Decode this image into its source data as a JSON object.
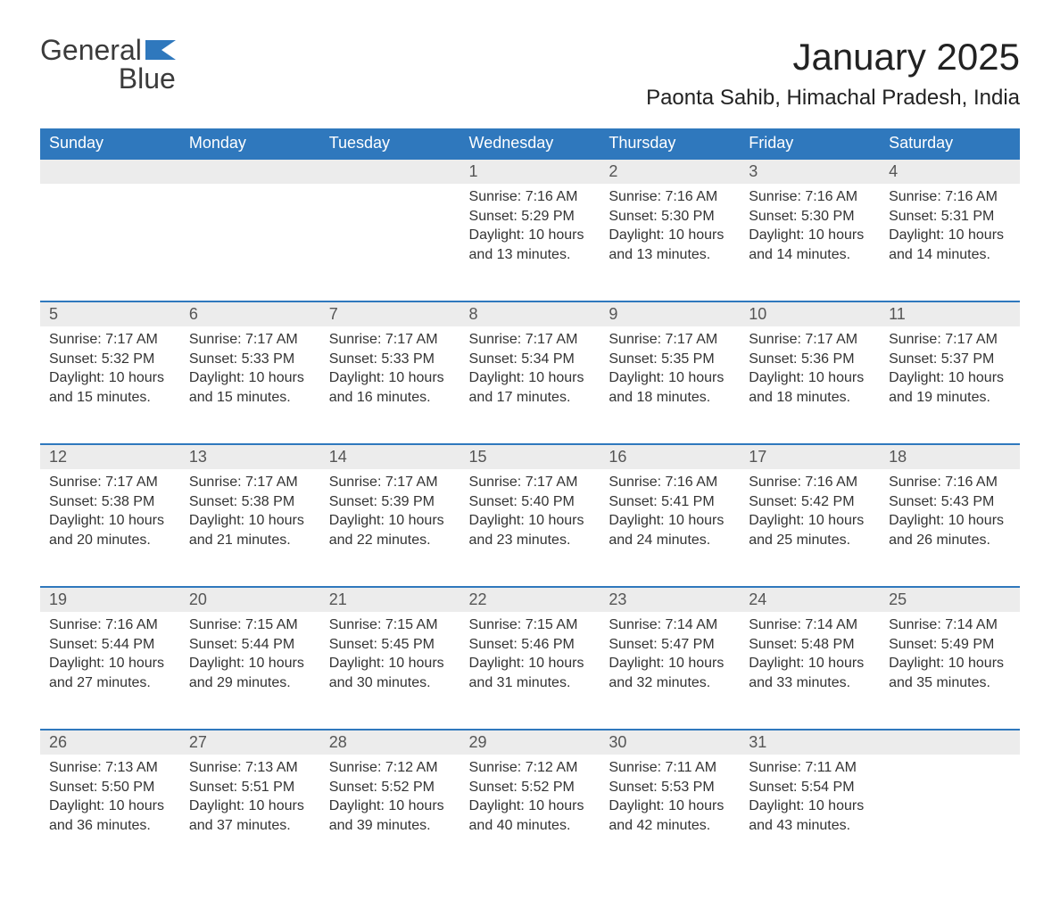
{
  "brand": {
    "part1": "General",
    "part2": "Blue",
    "logo_color": "#2f78bd"
  },
  "title": "January 2025",
  "location": "Paonta Sahib, Himachal Pradesh, India",
  "colors": {
    "header_bg": "#2f78bd",
    "header_text": "#ffffff",
    "daynum_bg": "#ececec",
    "row_border": "#2f78bd",
    "body_text": "#333333",
    "daynum_text": "#555555",
    "background": "#ffffff"
  },
  "typography": {
    "title_fontsize": 42,
    "location_fontsize": 24,
    "weekday_fontsize": 18,
    "daynum_fontsize": 18,
    "cell_fontsize": 16,
    "font_family": "Arial"
  },
  "layout": {
    "columns": 7,
    "start_weekday": "Sunday"
  },
  "weekdays": [
    "Sunday",
    "Monday",
    "Tuesday",
    "Wednesday",
    "Thursday",
    "Friday",
    "Saturday"
  ],
  "labels": {
    "sunrise": "Sunrise:",
    "sunset": "Sunset:",
    "daylight": "Daylight:"
  },
  "weeks": [
    [
      null,
      null,
      null,
      {
        "n": "1",
        "sr": "7:16 AM",
        "ss": "5:29 PM",
        "dl": "10 hours and 13 minutes."
      },
      {
        "n": "2",
        "sr": "7:16 AM",
        "ss": "5:30 PM",
        "dl": "10 hours and 13 minutes."
      },
      {
        "n": "3",
        "sr": "7:16 AM",
        "ss": "5:30 PM",
        "dl": "10 hours and 14 minutes."
      },
      {
        "n": "4",
        "sr": "7:16 AM",
        "ss": "5:31 PM",
        "dl": "10 hours and 14 minutes."
      }
    ],
    [
      {
        "n": "5",
        "sr": "7:17 AM",
        "ss": "5:32 PM",
        "dl": "10 hours and 15 minutes."
      },
      {
        "n": "6",
        "sr": "7:17 AM",
        "ss": "5:33 PM",
        "dl": "10 hours and 15 minutes."
      },
      {
        "n": "7",
        "sr": "7:17 AM",
        "ss": "5:33 PM",
        "dl": "10 hours and 16 minutes."
      },
      {
        "n": "8",
        "sr": "7:17 AM",
        "ss": "5:34 PM",
        "dl": "10 hours and 17 minutes."
      },
      {
        "n": "9",
        "sr": "7:17 AM",
        "ss": "5:35 PM",
        "dl": "10 hours and 18 minutes."
      },
      {
        "n": "10",
        "sr": "7:17 AM",
        "ss": "5:36 PM",
        "dl": "10 hours and 18 minutes."
      },
      {
        "n": "11",
        "sr": "7:17 AM",
        "ss": "5:37 PM",
        "dl": "10 hours and 19 minutes."
      }
    ],
    [
      {
        "n": "12",
        "sr": "7:17 AM",
        "ss": "5:38 PM",
        "dl": "10 hours and 20 minutes."
      },
      {
        "n": "13",
        "sr": "7:17 AM",
        "ss": "5:38 PM",
        "dl": "10 hours and 21 minutes."
      },
      {
        "n": "14",
        "sr": "7:17 AM",
        "ss": "5:39 PM",
        "dl": "10 hours and 22 minutes."
      },
      {
        "n": "15",
        "sr": "7:17 AM",
        "ss": "5:40 PM",
        "dl": "10 hours and 23 minutes."
      },
      {
        "n": "16",
        "sr": "7:16 AM",
        "ss": "5:41 PM",
        "dl": "10 hours and 24 minutes."
      },
      {
        "n": "17",
        "sr": "7:16 AM",
        "ss": "5:42 PM",
        "dl": "10 hours and 25 minutes."
      },
      {
        "n": "18",
        "sr": "7:16 AM",
        "ss": "5:43 PM",
        "dl": "10 hours and 26 minutes."
      }
    ],
    [
      {
        "n": "19",
        "sr": "7:16 AM",
        "ss": "5:44 PM",
        "dl": "10 hours and 27 minutes."
      },
      {
        "n": "20",
        "sr": "7:15 AM",
        "ss": "5:44 PM",
        "dl": "10 hours and 29 minutes."
      },
      {
        "n": "21",
        "sr": "7:15 AM",
        "ss": "5:45 PM",
        "dl": "10 hours and 30 minutes."
      },
      {
        "n": "22",
        "sr": "7:15 AM",
        "ss": "5:46 PM",
        "dl": "10 hours and 31 minutes."
      },
      {
        "n": "23",
        "sr": "7:14 AM",
        "ss": "5:47 PM",
        "dl": "10 hours and 32 minutes."
      },
      {
        "n": "24",
        "sr": "7:14 AM",
        "ss": "5:48 PM",
        "dl": "10 hours and 33 minutes."
      },
      {
        "n": "25",
        "sr": "7:14 AM",
        "ss": "5:49 PM",
        "dl": "10 hours and 35 minutes."
      }
    ],
    [
      {
        "n": "26",
        "sr": "7:13 AM",
        "ss": "5:50 PM",
        "dl": "10 hours and 36 minutes."
      },
      {
        "n": "27",
        "sr": "7:13 AM",
        "ss": "5:51 PM",
        "dl": "10 hours and 37 minutes."
      },
      {
        "n": "28",
        "sr": "7:12 AM",
        "ss": "5:52 PM",
        "dl": "10 hours and 39 minutes."
      },
      {
        "n": "29",
        "sr": "7:12 AM",
        "ss": "5:52 PM",
        "dl": "10 hours and 40 minutes."
      },
      {
        "n": "30",
        "sr": "7:11 AM",
        "ss": "5:53 PM",
        "dl": "10 hours and 42 minutes."
      },
      {
        "n": "31",
        "sr": "7:11 AM",
        "ss": "5:54 PM",
        "dl": "10 hours and 43 minutes."
      },
      null
    ]
  ]
}
